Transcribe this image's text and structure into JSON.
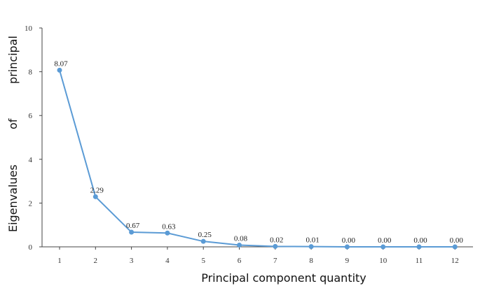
{
  "chart_data": {
    "type": "line",
    "title": "",
    "xlabel": "Principal component quantity",
    "ylabel_words": [
      "Eigenvalues",
      "of",
      "principal"
    ],
    "x": [
      1,
      2,
      3,
      4,
      5,
      6,
      7,
      8,
      9,
      10,
      11,
      12
    ],
    "series": [
      {
        "values": [
          8.07,
          2.29,
          0.67,
          0.63,
          0.25,
          0.08,
          0.02,
          0.01,
          0.0,
          0.0,
          0.0,
          0.0
        ],
        "labels": [
          "8.07",
          "2.29",
          "0.67",
          "0.63",
          "0.25",
          "0.08",
          "0.02",
          "0.01",
          "0.00",
          "0.00",
          "0.00",
          "0.00"
        ],
        "color": "#5b9bd5"
      }
    ],
    "ylim": [
      0,
      10
    ],
    "yticks": [
      0,
      2,
      4,
      6,
      8,
      10
    ],
    "grid": false,
    "legend": "none"
  }
}
